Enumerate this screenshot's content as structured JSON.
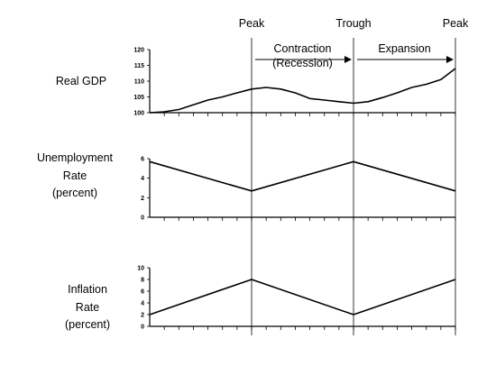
{
  "chart_data": {
    "type": "line",
    "x_count": 21,
    "phase_labels": [
      {
        "text": "Peak",
        "at": 7
      },
      {
        "text": "Trough",
        "at": 14
      },
      {
        "text": "Peak",
        "at": 21
      }
    ],
    "periods": [
      {
        "lines": [
          "Contraction",
          "(Recession)"
        ],
        "from": 7,
        "to": 14
      },
      {
        "lines": [
          "Expansion"
        ],
        "from": 14,
        "to": 21
      }
    ],
    "panels": [
      {
        "label_lines": [
          "Real GDP"
        ],
        "ylim": [
          100,
          120
        ],
        "yticks": [
          100,
          105,
          110,
          115,
          120
        ],
        "series": [
          {
            "x": [
              0,
              1,
              2,
              3,
              4,
              5,
              6,
              7,
              8,
              9,
              10,
              11,
              12,
              13,
              14,
              15,
              16,
              17,
              18,
              19,
              20,
              21
            ],
            "y": [
              100,
              100.3,
              101,
              102.5,
              104,
              105,
              106.3,
              107.5,
              108,
              107.5,
              106.3,
              104.5,
              104,
              103.5,
              103,
              103.5,
              104.8,
              106.3,
              108,
              109,
              110.5,
              114
            ]
          }
        ]
      },
      {
        "label_lines": [
          "Unemployment",
          "Rate",
          "(percent)"
        ],
        "ylim": [
          0,
          6
        ],
        "yticks": [
          0,
          2,
          4,
          6
        ],
        "series": [
          {
            "x": [
              0,
              7,
              14,
              21
            ],
            "y": [
              5.7,
              2.7,
              5.7,
              2.7
            ]
          }
        ]
      },
      {
        "label_lines": [
          "Inflation",
          "Rate",
          "(percent)"
        ],
        "ylim": [
          0,
          10
        ],
        "yticks": [
          0,
          2,
          4,
          6,
          8,
          10
        ],
        "series": [
          {
            "x": [
              0,
              7,
              14,
              21
            ],
            "y": [
              2,
              8,
              2,
              8
            ]
          }
        ]
      }
    ]
  }
}
